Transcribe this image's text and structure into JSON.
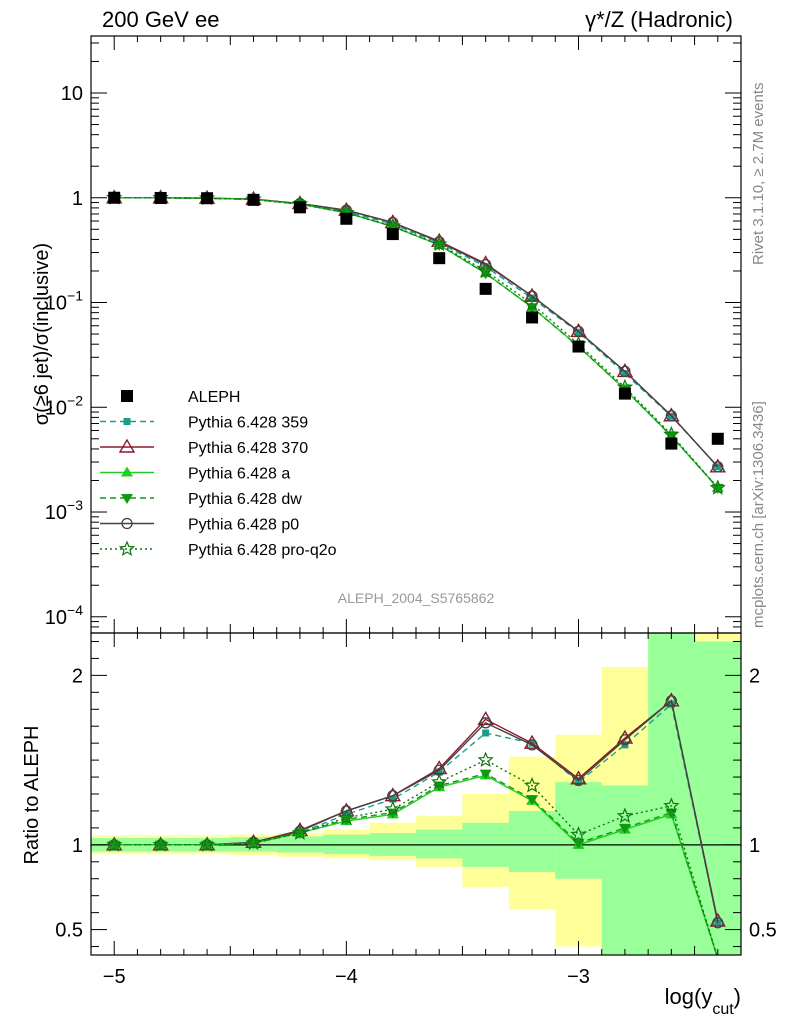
{
  "header": {
    "left_title": "200 GeV ee",
    "right_title_main": "γ*/Z (Hadronic)"
  },
  "side_notes": {
    "rivet": "Rivet 3.1.10, ≥ 2.7M events",
    "mcplots": "mcplots.cern.ch [arXiv:1306.3436]"
  },
  "analysis_id": "ALEPH_2004_S5765862",
  "chart_data": [
    {
      "type": "line",
      "panel": "main",
      "ylabel": "σ(≥6 jet)/σ(inclusive)",
      "yscale": "log",
      "ylim": [
        7e-05,
        35
      ],
      "xlim": [
        -5.1,
        -2.3
      ],
      "ytick_labels": [
        "10",
        "1",
        "10^-1",
        "10^-2",
        "10^-3",
        "10^-4"
      ],
      "x": [
        -5.0,
        -4.8,
        -4.6,
        -4.4,
        -4.2,
        -4.0,
        -3.8,
        -3.6,
        -3.4,
        -3.2,
        -3.0,
        -2.8,
        -2.6,
        -2.4
      ],
      "series": [
        {
          "name": "ALEPH",
          "color": "#000000",
          "marker": "square",
          "dash": "none",
          "values": [
            1.0,
            0.995,
            0.99,
            0.955,
            0.81,
            0.63,
            0.45,
            0.265,
            0.135,
            0.072,
            0.038,
            0.0135,
            0.0045,
            0.005
          ]
        },
        {
          "name": "Pythia 6.428 359",
          "color": "#1a9e8a",
          "marker": "square-small",
          "dash": "6,4",
          "values": [
            1.0,
            1.0,
            0.99,
            0.965,
            0.87,
            0.74,
            0.56,
            0.37,
            0.22,
            0.11,
            0.052,
            0.021,
            0.0082,
            0.0027
          ]
        },
        {
          "name": "Pythia 6.428 370",
          "color": "#8b1a2b",
          "marker": "triangle-open",
          "dash": "none",
          "values": [
            1.0,
            1.0,
            0.99,
            0.97,
            0.88,
            0.76,
            0.58,
            0.385,
            0.235,
            0.115,
            0.053,
            0.022,
            0.0083,
            0.0027
          ]
        },
        {
          "name": "Pythia 6.428 a",
          "color": "#22cc22",
          "marker": "triangle",
          "dash": "none",
          "values": [
            1.0,
            1.0,
            0.99,
            0.965,
            0.87,
            0.72,
            0.53,
            0.355,
            0.19,
            0.09,
            0.038,
            0.0148,
            0.0053,
            0.0017
          ]
        },
        {
          "name": "Pythia 6.428 dw",
          "color": "#119911",
          "marker": "triangle-down",
          "dash": "6,4",
          "values": [
            1.0,
            1.0,
            0.99,
            0.965,
            0.87,
            0.72,
            0.53,
            0.355,
            0.19,
            0.09,
            0.038,
            0.0148,
            0.0053,
            0.0017
          ]
        },
        {
          "name": "Pythia 6.428 p0",
          "color": "#444444",
          "marker": "circle-open",
          "dash": "none",
          "values": [
            1.0,
            1.0,
            0.99,
            0.97,
            0.88,
            0.76,
            0.58,
            0.38,
            0.23,
            0.115,
            0.053,
            0.022,
            0.0083,
            0.0027
          ]
        },
        {
          "name": "Pythia 6.428 pro-q2o",
          "color": "#117711",
          "marker": "star-open",
          "dash": "2,3",
          "values": [
            1.0,
            1.0,
            0.99,
            0.965,
            0.87,
            0.72,
            0.535,
            0.36,
            0.2,
            0.097,
            0.04,
            0.0155,
            0.0055,
            0.0017
          ]
        }
      ]
    },
    {
      "type": "line",
      "panel": "ratio",
      "ylabel": "Ratio to ALEPH",
      "xlabel_main": "log(y",
      "xlabel_sub": "cut",
      "xlabel_close": ")",
      "ylim": [
        0.35,
        2.25
      ],
      "xlim": [
        -5.1,
        -2.3
      ],
      "xticks": [
        -5,
        -4,
        -3
      ],
      "xtick_labels": [
        "−5",
        "−4",
        "−3"
      ],
      "yticks": [
        0.5,
        1,
        2
      ],
      "ytick_labels": [
        "0.5",
        "1",
        "2"
      ],
      "reference": 1,
      "x": [
        -5.0,
        -4.8,
        -4.6,
        -4.4,
        -4.2,
        -4.0,
        -3.8,
        -3.6,
        -3.4,
        -3.2,
        -3.0,
        -2.8,
        -2.6,
        -2.4
      ],
      "bin_edges": [
        -5.1,
        -4.9,
        -4.7,
        -4.5,
        -4.3,
        -4.1,
        -3.9,
        -3.7,
        -3.5,
        -3.3,
        -3.1,
        -2.9,
        -2.7,
        -2.5,
        -2.3
      ],
      "band_yellow": [
        [
          0.945,
          1.055
        ],
        [
          0.945,
          1.055
        ],
        [
          0.945,
          1.055
        ],
        [
          0.94,
          1.06
        ],
        [
          0.93,
          1.07
        ],
        [
          0.92,
          1.09
        ],
        [
          0.91,
          1.13
        ],
        [
          0.87,
          1.17
        ],
        [
          0.75,
          1.3
        ],
        [
          0.62,
          1.52
        ],
        [
          0.4,
          1.65
        ],
        [
          0.38,
          2.05
        ],
        [
          0.3,
          2.25
        ],
        [
          0.3,
          2.25
        ]
      ],
      "band_green": [
        [
          0.96,
          1.04
        ],
        [
          0.96,
          1.04
        ],
        [
          0.96,
          1.04
        ],
        [
          0.96,
          1.045
        ],
        [
          0.955,
          1.05
        ],
        [
          0.945,
          1.06
        ],
        [
          0.935,
          1.07
        ],
        [
          0.92,
          1.09
        ],
        [
          0.87,
          1.13
        ],
        [
          0.84,
          1.2
        ],
        [
          0.8,
          1.37
        ],
        [
          0.3,
          1.35
        ],
        [
          0.3,
          2.25
        ],
        [
          0.3,
          2.2
        ]
      ],
      "series": [
        {
          "name": "Pythia 6.428 359",
          "color": "#1a9e8a",
          "marker": "square-small",
          "dash": "6,4",
          "values": [
            1.0,
            1.0,
            1.0,
            1.01,
            1.07,
            1.18,
            1.27,
            1.43,
            1.66,
            1.6,
            1.37,
            1.59,
            1.83,
            0.54
          ]
        },
        {
          "name": "Pythia 6.428 370",
          "color": "#8b1a2b",
          "marker": "triangle-open",
          "dash": "none",
          "values": [
            1.0,
            1.0,
            1.0,
            1.015,
            1.085,
            1.2,
            1.29,
            1.45,
            1.74,
            1.6,
            1.39,
            1.63,
            1.85,
            0.55
          ]
        },
        {
          "name": "Pythia 6.428 a",
          "color": "#22cc22",
          "marker": "triangle",
          "dash": "none",
          "values": [
            1.0,
            1.0,
            1.0,
            1.01,
            1.07,
            1.14,
            1.18,
            1.34,
            1.41,
            1.26,
            1.0,
            1.09,
            1.18,
            0.33
          ]
        },
        {
          "name": "Pythia 6.428 dw",
          "color": "#119911",
          "marker": "triangle-down",
          "dash": "6,4",
          "values": [
            1.0,
            1.0,
            1.0,
            1.01,
            1.07,
            1.15,
            1.19,
            1.35,
            1.42,
            1.27,
            1.01,
            1.1,
            1.19,
            0.33
          ]
        },
        {
          "name": "Pythia 6.428 p0",
          "color": "#444444",
          "marker": "circle-open",
          "dash": "none",
          "values": [
            1.0,
            1.0,
            1.0,
            1.015,
            1.08,
            1.2,
            1.29,
            1.44,
            1.72,
            1.59,
            1.38,
            1.62,
            1.85,
            0.54
          ]
        },
        {
          "name": "Pythia 6.428 pro-q2o",
          "color": "#117711",
          "marker": "star-open",
          "dash": "2,3",
          "values": [
            1.0,
            1.0,
            1.0,
            1.01,
            1.07,
            1.16,
            1.21,
            1.37,
            1.5,
            1.35,
            1.06,
            1.17,
            1.23,
            0.33
          ]
        }
      ]
    }
  ]
}
